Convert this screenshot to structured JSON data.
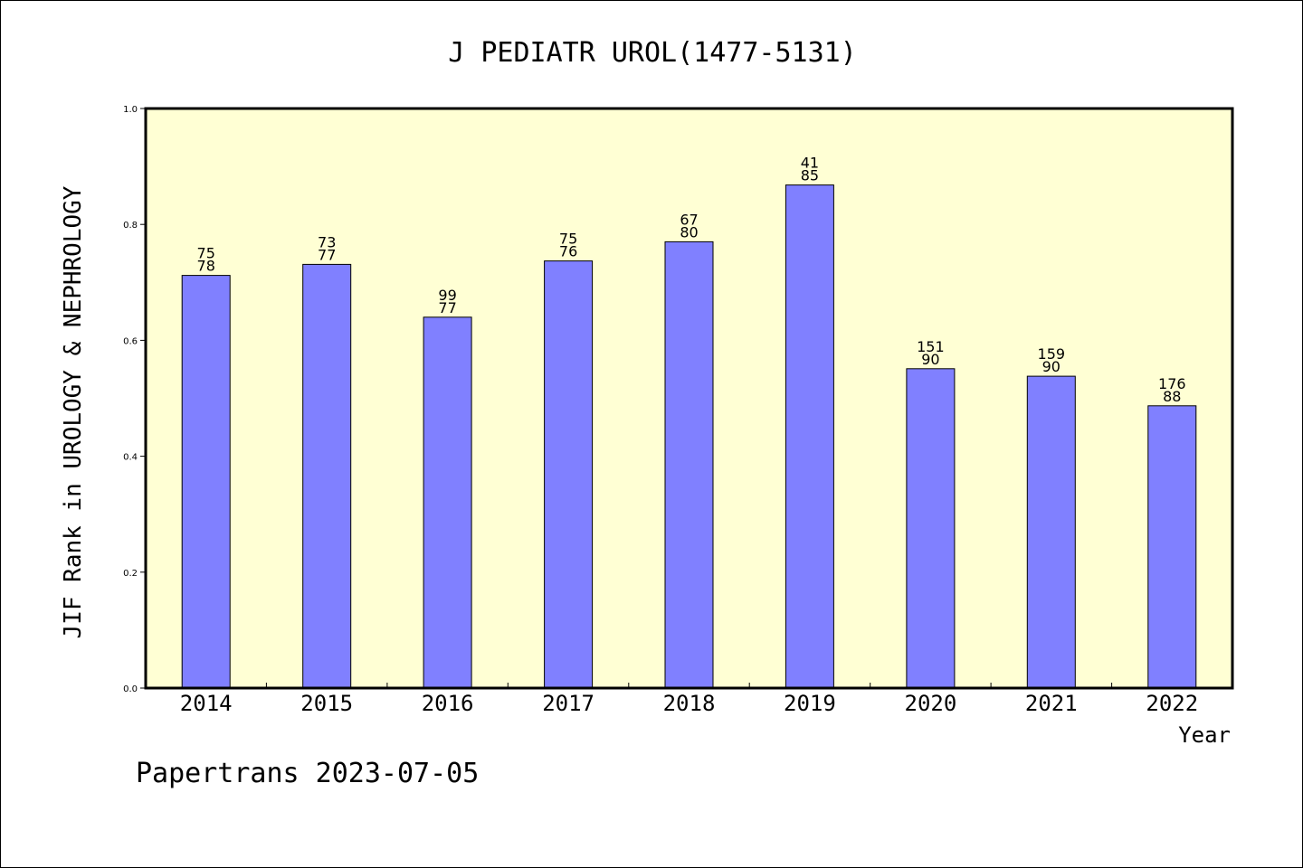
{
  "colors": {
    "plot_background": "#ffffd4",
    "bar_fill": "#8080ff",
    "bar_stroke": "#000000",
    "axis": "#000000"
  },
  "footer": "Papertrans 2023-07-05",
  "chart_data": {
    "type": "bar",
    "title": "J PEDIATR UROL(1477-5131)",
    "xlabel": "Year",
    "ylabel": "JIF Rank in UROLOGY & NEPHROLOGY",
    "ylim": [
      0,
      1.0
    ],
    "yticks": [
      "0.0",
      "0.2",
      "0.4",
      "0.6",
      "0.8",
      "1.0"
    ],
    "grid": false,
    "categories": [
      "2014",
      "2015",
      "2016",
      "2017",
      "2018",
      "2019",
      "2020",
      "2021",
      "2022"
    ],
    "values": [
      0.712,
      0.731,
      0.64,
      0.737,
      0.77,
      0.868,
      0.551,
      0.538,
      0.487
    ],
    "rank": [
      "75",
      "73",
      "99",
      "75",
      "67",
      "41",
      "151",
      "159",
      "176"
    ],
    "total": [
      "78",
      "77",
      "77",
      "76",
      "80",
      "85",
      "90",
      "90",
      "88"
    ]
  }
}
